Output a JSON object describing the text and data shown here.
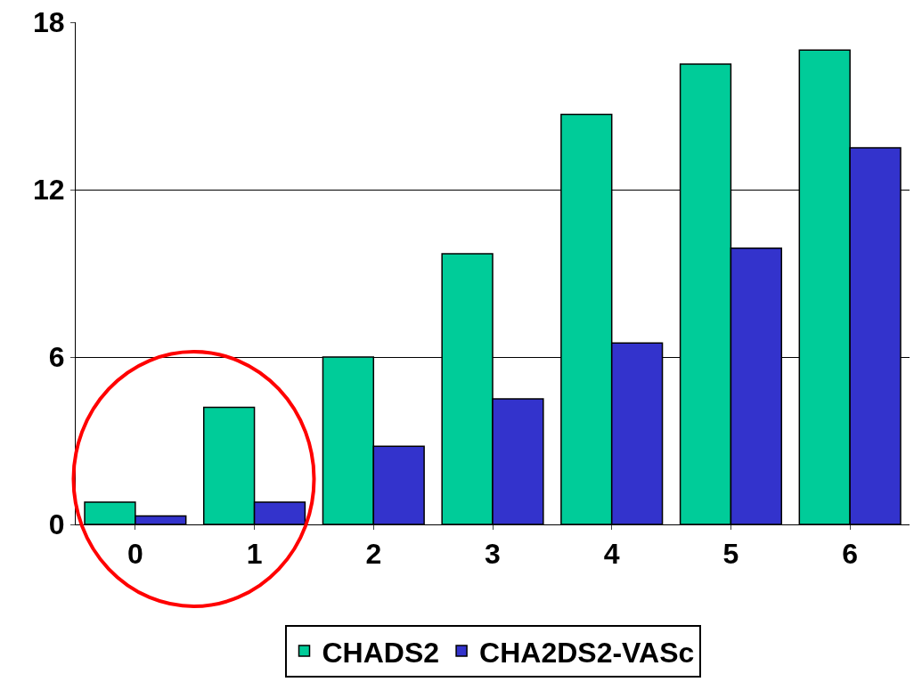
{
  "chart_data": {
    "type": "bar",
    "categories": [
      "0",
      "1",
      "2",
      "3",
      "4",
      "5",
      "6"
    ],
    "series": [
      {
        "name": "CHADS2",
        "color": "#00cc99",
        "values": [
          0.8,
          4.2,
          6.0,
          9.7,
          14.7,
          16.5,
          17.0
        ]
      },
      {
        "name": "CHA2DS2-VASc",
        "color": "#3333cc",
        "values": [
          0.3,
          0.8,
          2.8,
          4.5,
          6.5,
          9.9,
          13.5
        ]
      }
    ],
    "ylim": [
      0,
      18
    ],
    "yticks": [
      0,
      6,
      12,
      18
    ],
    "grid": "y",
    "legend": "bottom"
  }
}
